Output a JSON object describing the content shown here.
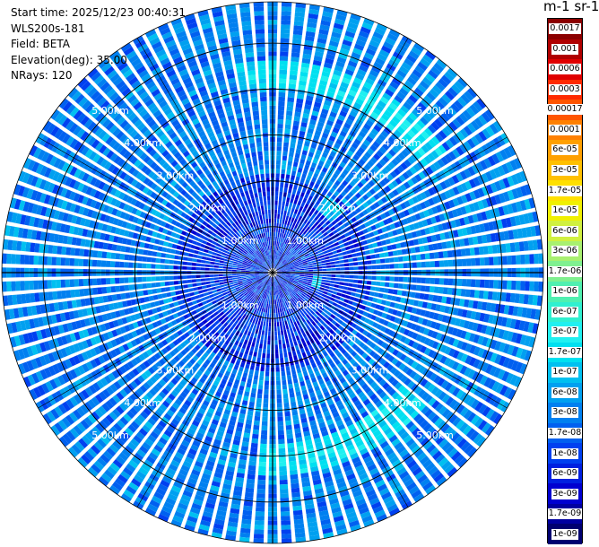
{
  "header": {
    "start_time": "Start time: 2025/12/23 00:40:31",
    "instrument": "WLS200s-181",
    "field": "Field: BETA",
    "elevation": "Elevation(deg): 35.00",
    "nrays": "NRays: 120"
  },
  "colorbar": {
    "title": "m-1 sr-1",
    "ticks": [
      "0.0017",
      "0.001",
      "0.0006",
      "0.0003",
      "0.00017",
      "0.0001",
      "6e-05",
      "3e-05",
      "1.7e-05",
      "1e-05",
      "6e-06",
      "3e-06",
      "1.7e-06",
      "1e-06",
      "6e-07",
      "3e-07",
      "1.7e-07",
      "1e-07",
      "6e-08",
      "3e-08",
      "1.7e-08",
      "1e-08",
      "6e-09",
      "3e-09",
      "1.7e-09",
      "1e-09"
    ],
    "colors": [
      "#8b0000",
      "#b00000",
      "#e00000",
      "#ff2a00",
      "#ff5500",
      "#ff8000",
      "#ffa000",
      "#ffc000",
      "#ffe000",
      "#f0f000",
      "#d0f040",
      "#a8f070",
      "#80f090",
      "#50f0b0",
      "#30f0d0",
      "#20f0f0",
      "#00e0f0",
      "#00c0f0",
      "#00a0f0",
      "#0080f0",
      "#0060f0",
      "#0040f0",
      "#0020e0",
      "#0000d0",
      "#0000a0",
      "#000070"
    ]
  },
  "chart_data": {
    "type": "heatmap",
    "projection": "polar (PPI scan)",
    "field": "BETA",
    "elevation_deg": 35.0,
    "n_rays": 120,
    "range_rings_km": [
      "1.00km",
      "2.00km",
      "3.00km",
      "4.00km",
      "5.00km"
    ],
    "max_range_km": 5.9,
    "gates_per_ray": 60,
    "scale": "log",
    "value_range": [
      1e-09,
      0.0017
    ],
    "background_level": 3e-08,
    "features": [
      {
        "description": "enhanced return arc",
        "azimuth_deg": [
          -10,
          55
        ],
        "range_km": [
          4.0,
          4.6
        ],
        "level": 1.7e-07
      },
      {
        "description": "enhanced return arc",
        "azimuth_deg": [
          130,
          185
        ],
        "range_km": [
          3.7,
          4.4
        ],
        "level": 1.7e-07
      },
      {
        "description": "small patch",
        "azimuth_deg": [
          35,
          50
        ],
        "range_km": [
          1.7,
          2.1
        ],
        "level": 1e-07
      },
      {
        "description": "small patch",
        "azimuth_deg": [
          95,
          110
        ],
        "range_km": [
          0.9,
          1.1
        ],
        "level": 1e-07
      }
    ],
    "color_palette": "rainbow"
  }
}
